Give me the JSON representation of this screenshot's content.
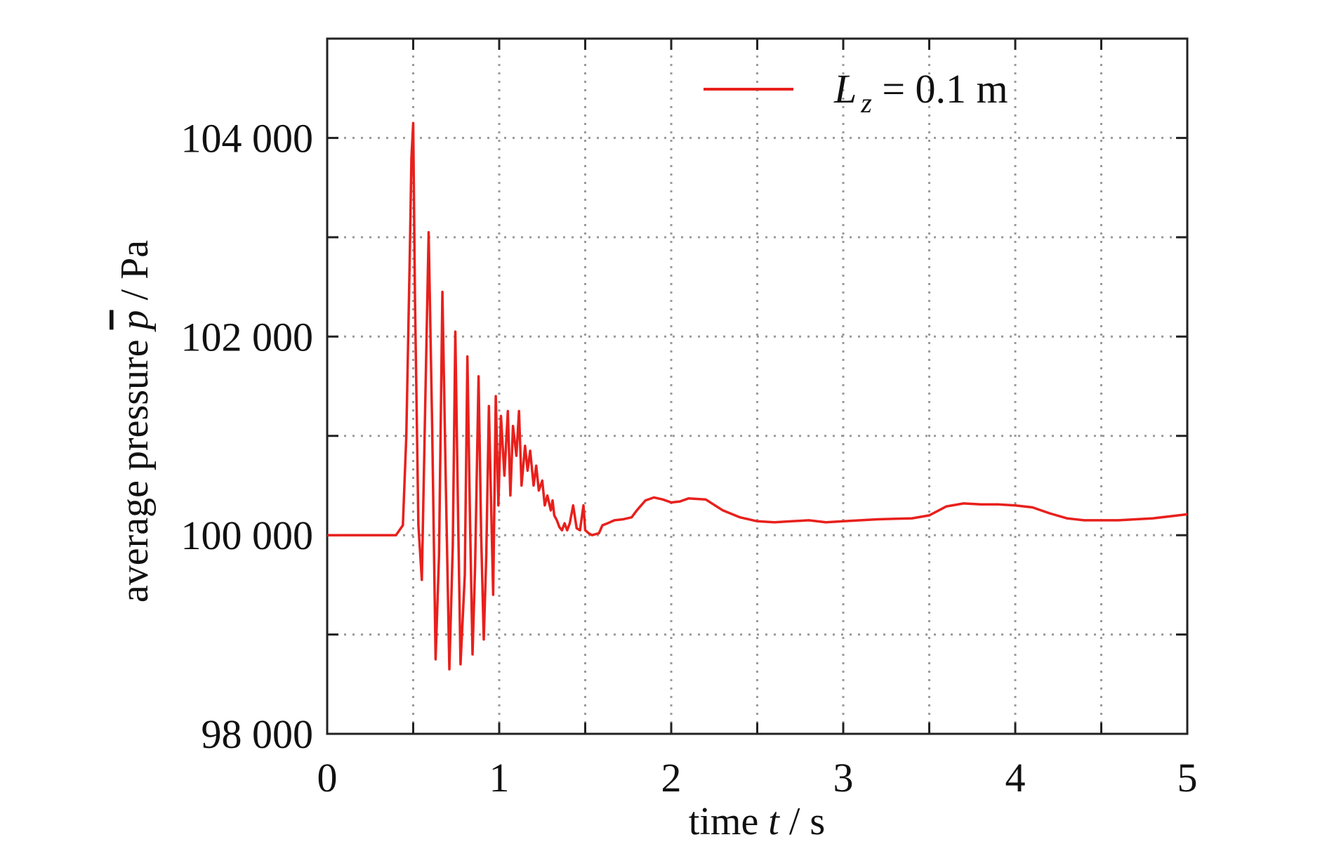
{
  "chart_data": {
    "type": "line",
    "title": "",
    "xlabel": {
      "pre": "time ",
      "var": "t",
      "post": " / s"
    },
    "ylabel": {
      "pre": "average pressure ",
      "var": "p",
      "post": " / Pa"
    },
    "xlim": [
      0,
      5
    ],
    "ylim": [
      98000,
      105000
    ],
    "x_ticks": [
      0,
      1,
      2,
      3,
      4,
      5
    ],
    "x_tick_labels": [
      "0",
      "1",
      "2",
      "3",
      "4",
      "5"
    ],
    "y_ticks": [
      98000,
      100000,
      102000,
      104000
    ],
    "y_tick_labels": [
      "98 000",
      "100 000",
      "102 000",
      "104 000"
    ],
    "y_minor_ticks": [
      99000,
      101000,
      103000
    ],
    "x_minor_ticks": [
      0.5,
      1.5,
      2.5,
      3.5,
      4.5
    ],
    "grid": true,
    "legend": {
      "position": "top-right",
      "label_main": "L",
      "label_sub": "z",
      "label_rest": " = 0.1 m"
    },
    "series": [
      {
        "name": "L z = 0.1 m",
        "color": "#e8201c",
        "x": [
          0,
          0.1,
          0.2,
          0.3,
          0.4,
          0.44,
          0.46,
          0.48,
          0.49,
          0.5,
          0.51,
          0.53,
          0.55,
          0.57,
          0.59,
          0.61,
          0.63,
          0.65,
          0.67,
          0.69,
          0.71,
          0.73,
          0.745,
          0.76,
          0.775,
          0.8,
          0.815,
          0.83,
          0.845,
          0.86,
          0.88,
          0.895,
          0.91,
          0.925,
          0.94,
          0.965,
          0.98,
          0.995,
          1.01,
          1.03,
          1.05,
          1.065,
          1.08,
          1.1,
          1.115,
          1.13,
          1.15,
          1.165,
          1.18,
          1.2,
          1.215,
          1.23,
          1.25,
          1.265,
          1.28,
          1.3,
          1.31,
          1.32,
          1.335,
          1.35,
          1.365,
          1.38,
          1.395,
          1.41,
          1.43,
          1.45,
          1.47,
          1.49,
          1.5,
          1.52,
          1.54,
          1.56,
          1.58,
          1.6,
          1.63,
          1.67,
          1.72,
          1.77,
          1.8,
          1.85,
          1.9,
          1.95,
          2.0,
          2.05,
          2.1,
          2.2,
          2.3,
          2.4,
          2.5,
          2.6,
          2.7,
          2.8,
          2.9,
          3.0,
          3.2,
          3.4,
          3.5,
          3.6,
          3.7,
          3.8,
          3.9,
          4.0,
          4.1,
          4.2,
          4.3,
          4.4,
          4.6,
          4.8,
          5.0
        ],
        "y": [
          100000,
          100000,
          100000,
          100000,
          100000,
          100100,
          101000,
          102800,
          103800,
          104150,
          102400,
          100100,
          99550,
          101300,
          103050,
          101100,
          98750,
          99800,
          102450,
          100500,
          98650,
          99900,
          102050,
          100300,
          98700,
          99600,
          101800,
          100200,
          98800,
          99700,
          101600,
          100000,
          98950,
          99800,
          101300,
          99400,
          101400,
          100300,
          101200,
          100600,
          101250,
          100400,
          101100,
          100800,
          101250,
          100500,
          100900,
          100650,
          100850,
          100500,
          100700,
          100450,
          100550,
          100300,
          100400,
          100250,
          100350,
          100200,
          100150,
          100080,
          100050,
          100120,
          100050,
          100120,
          100300,
          100070,
          100050,
          100300,
          100050,
          100020,
          100000,
          100010,
          100020,
          100100,
          100120,
          100150,
          100160,
          100180,
          100250,
          100350,
          100380,
          100360,
          100330,
          100340,
          100370,
          100360,
          100250,
          100180,
          100140,
          100130,
          100140,
          100150,
          100130,
          100140,
          100160,
          100170,
          100200,
          100290,
          100320,
          100310,
          100310,
          100300,
          100280,
          100220,
          100170,
          100150,
          100150,
          100170,
          100210
        ]
      }
    ]
  }
}
